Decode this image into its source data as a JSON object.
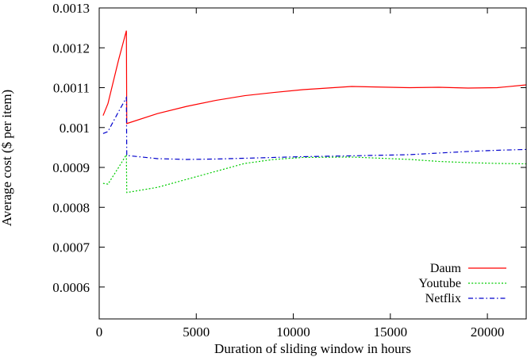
{
  "chart_data": {
    "type": "line",
    "title": "",
    "xlabel": "Duration of sliding window in hours",
    "ylabel": "Average cost ($ per item)",
    "xlim": [
      0,
      22000
    ],
    "ylim": [
      0.00052,
      0.0013
    ],
    "grid": false,
    "legend_position": "bottom-right",
    "x_ticks": [
      0,
      5000,
      10000,
      15000,
      20000
    ],
    "x_tick_labels": [
      "0",
      "5000",
      "10000",
      "15000",
      "20000"
    ],
    "y_ticks": [
      0.0006,
      0.0007,
      0.0008,
      0.0009,
      0.001,
      0.0011,
      0.0012,
      0.0013
    ],
    "y_tick_labels": [
      "0.0006",
      "0.0007",
      "0.0008",
      "0.0009",
      "0.001",
      "0.0011",
      "0.0012",
      "0.0013"
    ],
    "series": [
      {
        "name": "Daum",
        "color": "#ff0000",
        "dash": "solid",
        "x": [
          200,
          450,
          1000,
          1400,
          1420,
          3000,
          4500,
          6000,
          7500,
          9000,
          10500,
          13000,
          16000,
          17500,
          19000,
          20500,
          22000
        ],
        "y": [
          0.00103,
          0.00106,
          0.00117,
          0.001243,
          0.00101,
          0.001035,
          0.001053,
          0.001068,
          0.00108,
          0.001088,
          0.001095,
          0.001103,
          0.0011,
          0.001101,
          0.001099,
          0.0011,
          0.001107
        ]
      },
      {
        "name": "Youtube",
        "color": "#00cc00",
        "dash": "dotted",
        "x": [
          200,
          450,
          1000,
          1400,
          1420,
          3000,
          4500,
          6000,
          7500,
          9000,
          10500,
          13000,
          16000,
          17500,
          19000,
          20500,
          22000
        ],
        "y": [
          0.00086,
          0.000858,
          0.0009,
          0.000932,
          0.000837,
          0.00085,
          0.00087,
          0.00089,
          0.00091,
          0.00092,
          0.000925,
          0.000926,
          0.00092,
          0.000915,
          0.000912,
          0.00091,
          0.000909
        ]
      },
      {
        "name": "Netflix",
        "color": "#0000cc",
        "dash": "dashdot",
        "x": [
          200,
          450,
          1000,
          1400,
          1420,
          3000,
          4500,
          6000,
          7500,
          9000,
          10500,
          13000,
          16000,
          17500,
          19000,
          20500,
          22000
        ],
        "y": [
          0.000985,
          0.00099,
          0.00104,
          0.001075,
          0.00093,
          0.000922,
          0.00092,
          0.000921,
          0.000923,
          0.000925,
          0.000927,
          0.000929,
          0.000932,
          0.000936,
          0.00094,
          0.000943,
          0.000945
        ]
      }
    ]
  }
}
